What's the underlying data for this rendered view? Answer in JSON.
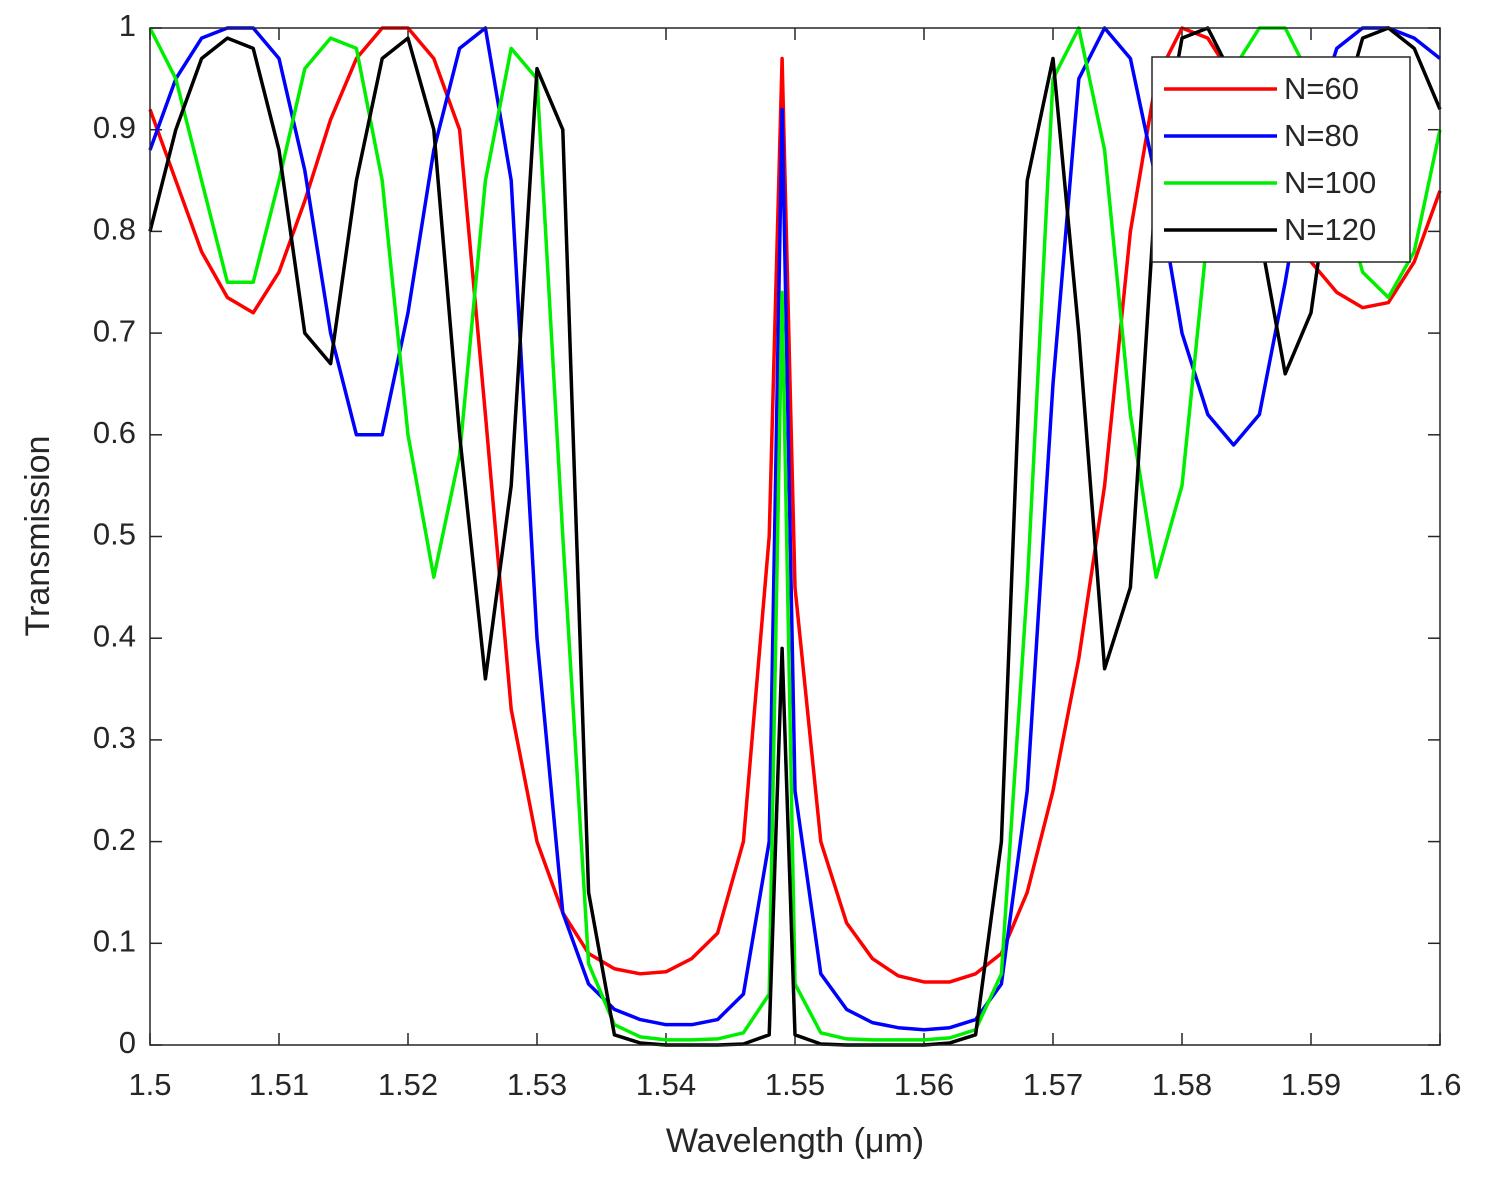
{
  "chart_data": {
    "type": "line",
    "xlabel": "Wavelength (μm)",
    "ylabel": "Transmission",
    "x": [
      1.5,
      1.502,
      1.504,
      1.506,
      1.508,
      1.51,
      1.512,
      1.514,
      1.516,
      1.518,
      1.52,
      1.522,
      1.524,
      1.526,
      1.528,
      1.53,
      1.532,
      1.534,
      1.536,
      1.538,
      1.54,
      1.542,
      1.544,
      1.546,
      1.548,
      1.549,
      1.55,
      1.552,
      1.554,
      1.556,
      1.558,
      1.56,
      1.562,
      1.564,
      1.566,
      1.568,
      1.57,
      1.572,
      1.574,
      1.576,
      1.578,
      1.58,
      1.582,
      1.584,
      1.586,
      1.588,
      1.59,
      1.592,
      1.594,
      1.596,
      1.598,
      1.6
    ],
    "series": [
      {
        "name": "N=60",
        "color": "#ff0000",
        "values": [
          0.92,
          0.85,
          0.78,
          0.735,
          0.72,
          0.76,
          0.83,
          0.91,
          0.97,
          1.0,
          1.0,
          0.97,
          0.9,
          0.62,
          0.33,
          0.2,
          0.13,
          0.09,
          0.075,
          0.07,
          0.072,
          0.085,
          0.11,
          0.2,
          0.5,
          0.97,
          0.45,
          0.2,
          0.12,
          0.085,
          0.068,
          0.062,
          0.062,
          0.07,
          0.09,
          0.15,
          0.25,
          0.38,
          0.55,
          0.8,
          0.95,
          1.0,
          0.99,
          0.95,
          0.88,
          0.82,
          0.77,
          0.74,
          0.725,
          0.73,
          0.77,
          0.84
        ]
      },
      {
        "name": "N=80",
        "color": "#0000ff",
        "values": [
          0.88,
          0.95,
          0.99,
          1.0,
          1.0,
          0.97,
          0.86,
          0.7,
          0.6,
          0.6,
          0.72,
          0.88,
          0.98,
          1.0,
          0.85,
          0.4,
          0.13,
          0.06,
          0.035,
          0.025,
          0.02,
          0.02,
          0.025,
          0.05,
          0.2,
          0.92,
          0.25,
          0.07,
          0.035,
          0.022,
          0.017,
          0.015,
          0.017,
          0.025,
          0.06,
          0.25,
          0.65,
          0.95,
          1.0,
          0.97,
          0.85,
          0.7,
          0.62,
          0.59,
          0.62,
          0.75,
          0.9,
          0.98,
          1.0,
          1.0,
          0.99,
          0.97
        ]
      },
      {
        "name": "N=100",
        "color": "#00ee00",
        "values": [
          1.0,
          0.95,
          0.85,
          0.75,
          0.75,
          0.85,
          0.96,
          0.99,
          0.98,
          0.85,
          0.6,
          0.46,
          0.58,
          0.85,
          0.98,
          0.95,
          0.5,
          0.08,
          0.02,
          0.008,
          0.005,
          0.005,
          0.006,
          0.012,
          0.05,
          0.74,
          0.06,
          0.012,
          0.006,
          0.005,
          0.005,
          0.005,
          0.007,
          0.015,
          0.07,
          0.45,
          0.95,
          1.0,
          0.88,
          0.62,
          0.46,
          0.55,
          0.8,
          0.96,
          1.0,
          1.0,
          0.95,
          0.85,
          0.76,
          0.735,
          0.78,
          0.9
        ]
      },
      {
        "name": "N=120",
        "color": "#000000",
        "values": [
          0.8,
          0.9,
          0.97,
          0.99,
          0.98,
          0.88,
          0.7,
          0.67,
          0.85,
          0.97,
          0.99,
          0.9,
          0.6,
          0.36,
          0.55,
          0.96,
          0.9,
          0.15,
          0.01,
          0.002,
          0,
          0,
          0,
          0.001,
          0.01,
          0.39,
          0.01,
          0.001,
          0,
          0,
          0,
          0,
          0.002,
          0.01,
          0.2,
          0.85,
          0.97,
          0.7,
          0.37,
          0.45,
          0.85,
          0.99,
          1.0,
          0.95,
          0.8,
          0.66,
          0.72,
          0.9,
          0.99,
          1.0,
          0.98,
          0.92
        ]
      }
    ],
    "xlim": [
      1.5,
      1.6
    ],
    "xticks": [
      1.5,
      1.51,
      1.52,
      1.53,
      1.54,
      1.55,
      1.56,
      1.57,
      1.58,
      1.59,
      1.6
    ],
    "ylim": [
      0,
      1
    ],
    "yticks": [
      0,
      0.1,
      0.2,
      0.3,
      0.4,
      0.5,
      0.6,
      0.7,
      0.8,
      0.9,
      1
    ],
    "legend": "upper right"
  }
}
